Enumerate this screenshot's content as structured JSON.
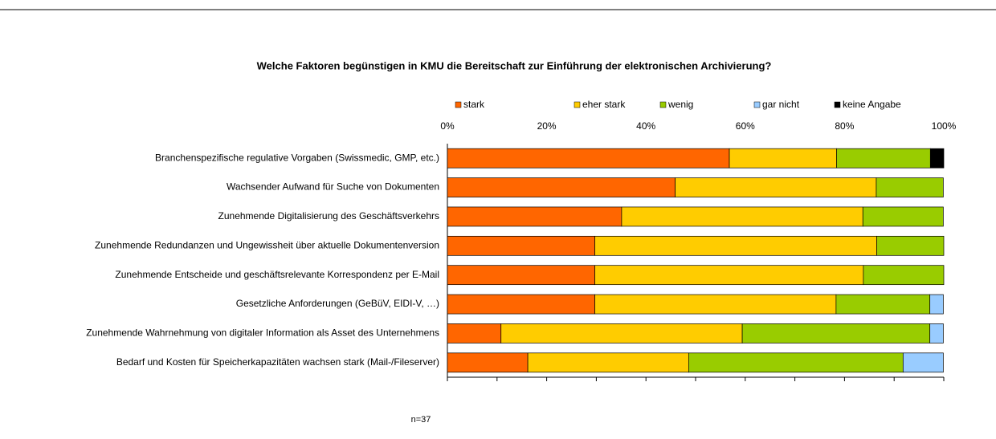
{
  "chart_data": {
    "type": "stacked_barh",
    "title": "Welche Faktoren begünstigen in KMU die Bereitschaft zur Einführung der elektronischen Archivierung?",
    "annotation": "n=37",
    "categories": [
      "Branchenspezifische regulative Vorgaben (Swissmedic, GMP, etc.)",
      "Wachsender Aufwand für Suche von Dokumenten",
      "Zunehmende Digitalisierung des Geschäftsverkehrs",
      "Zunehmende Redundanzen und Ungewissheit über aktuelle Dokumentenversion",
      "Zunehmende Entscheide und geschäftsrelevante Korrespondenz per E-Mail",
      "Gesetzliche Anforderungen (GeBüV, EIDI-V, …)",
      "Zunehmende Wahrnehmung von digitaler Information als Asset des Unternehmens",
      "Bedarf und Kosten für Speicherkapazitäten wachsen stark (Mail-/Fileserver)"
    ],
    "series": [
      {
        "name": "stark",
        "color": "#ff6600",
        "values": [
          56.8,
          45.9,
          35.1,
          29.7,
          29.7,
          29.7,
          10.8,
          16.2
        ]
      },
      {
        "name": "eher stark",
        "color": "#ffcc00",
        "values": [
          21.6,
          40.5,
          48.6,
          56.8,
          54.1,
          48.6,
          48.6,
          32.4
        ]
      },
      {
        "name": "wenig",
        "color": "#99cc00",
        "values": [
          18.9,
          13.5,
          16.2,
          13.5,
          16.2,
          18.9,
          37.8,
          43.2
        ]
      },
      {
        "name": "gar nicht",
        "color": "#99ccff",
        "values": [
          null,
          null,
          null,
          null,
          null,
          2.7,
          2.7,
          8.1
        ]
      },
      {
        "name": "keine Angabe",
        "color": "#000000",
        "values": [
          2.7,
          null,
          null,
          null,
          null,
          null,
          null,
          null
        ]
      }
    ],
    "xlim": [
      0,
      100
    ],
    "xticks": [
      {
        "value": 0,
        "label": "0%"
      },
      {
        "value": 20,
        "label": "20%"
      },
      {
        "value": 40,
        "label": "40%"
      },
      {
        "value": 60,
        "label": "60%"
      },
      {
        "value": 80,
        "label": "80%"
      },
      {
        "value": 100,
        "label": "100%"
      }
    ],
    "minor_xticks": [
      0,
      10,
      20,
      30,
      40,
      50,
      60,
      70,
      80,
      90,
      100
    ],
    "legend": "top"
  }
}
